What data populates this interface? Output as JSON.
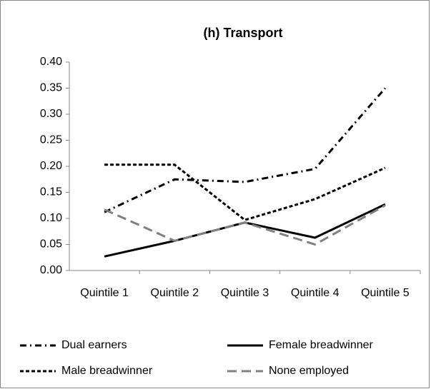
{
  "chart_data": {
    "type": "line",
    "title": "(h) Transport",
    "categories": [
      "Quintile 1",
      "Quintile 2",
      "Quintile 3",
      "Quintile 4",
      "Quintile 5"
    ],
    "series": [
      {
        "name": "Dual earners",
        "color": "#000000",
        "values": [
          0.112,
          0.175,
          0.17,
          0.195,
          0.35
        ]
      },
      {
        "name": "Female breadwinner",
        "color": "#000000",
        "values": [
          0.027,
          0.057,
          0.092,
          0.063,
          0.127
        ]
      },
      {
        "name": "Male breadwinner",
        "color": "#000000",
        "values": [
          0.203,
          0.203,
          0.097,
          0.137,
          0.197
        ]
      },
      {
        "name": "None employed",
        "color": "#808080",
        "values": [
          0.117,
          0.057,
          0.092,
          0.05,
          0.125
        ]
      }
    ],
    "ylim": [
      0,
      0.4
    ],
    "yticks": [
      {
        "value": 0,
        "label": "0.00"
      },
      {
        "value": 0.05,
        "label": "0.05"
      },
      {
        "value": 0.1,
        "label": "0.10"
      },
      {
        "value": 0.15,
        "label": "0.15"
      },
      {
        "value": 0.2,
        "label": "0.20"
      },
      {
        "value": 0.25,
        "label": "0.25"
      },
      {
        "value": 0.3,
        "label": "0.30"
      },
      {
        "value": 0.35,
        "label": "0.35"
      },
      {
        "value": 0.4,
        "label": "0.40"
      }
    ],
    "grid": false
  }
}
